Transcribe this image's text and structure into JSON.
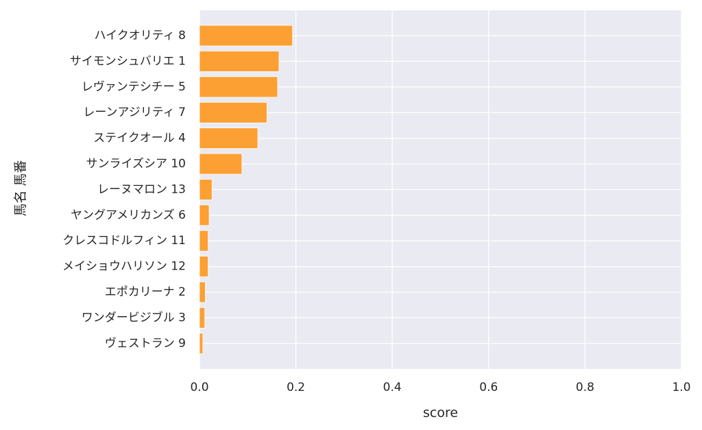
{
  "chart_data": {
    "type": "bar",
    "orientation": "horizontal",
    "xlabel": "score",
    "ylabel": "馬名 馬番",
    "xlim": [
      0.0,
      1.0
    ],
    "x_ticks": [
      0.0,
      0.2,
      0.4,
      0.6,
      0.8,
      1.0
    ],
    "x_tick_labels": [
      "0.0",
      "0.2",
      "0.4",
      "0.6",
      "0.8",
      "1.0"
    ],
    "grid": true,
    "legend": "none",
    "colors": {
      "bar": "#fca033",
      "plot_background": "#eaeaf2",
      "grid": "#ffffff",
      "text": "#262626"
    },
    "categories": [
      "ハイクオリティ 8",
      "サイモンシュバリエ 1",
      "レヴァンテシチー 5",
      "レーンアジリティ 7",
      "ステイクオール 4",
      "サンライズシア 10",
      "レーヌマロン 13",
      "ヤングアメリカンズ 6",
      "クレスコドルフィン 11",
      "メイショウハリソン 12",
      "エポカリーナ 2",
      "ワンダービジブル 3",
      "ヴェストラン 9"
    ],
    "values": [
      0.193,
      0.165,
      0.162,
      0.14,
      0.121,
      0.088,
      0.026,
      0.02,
      0.018,
      0.018,
      0.012,
      0.011,
      0.007
    ]
  }
}
